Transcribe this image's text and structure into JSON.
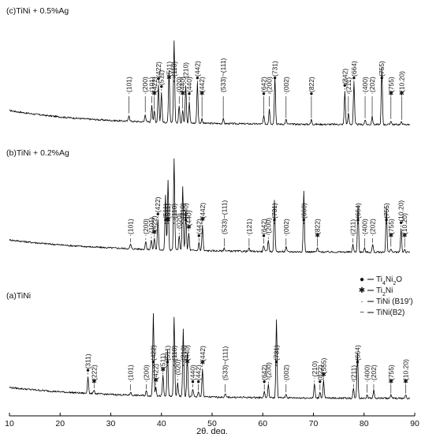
{
  "chart_data": {
    "type": "line",
    "xlabel": "2θ, deg.",
    "ylabel": "",
    "xlim": [
      10,
      90
    ],
    "xticks": [
      10,
      20,
      30,
      40,
      50,
      60,
      70,
      80,
      90
    ],
    "grid": false,
    "legend": {
      "placement": "right-middle",
      "entries": [
        {
          "symbol": "●",
          "label": "Ti4Ni2O",
          "label_base": "Ti",
          "sub1": "4",
          "mid": "Ni",
          "sub2": "2",
          "tail": "O"
        },
        {
          "symbol": "✱",
          "label": "Ti2Ni",
          "label_base": "Ti",
          "sub1": "2",
          "mid": "Ni",
          "sub2": "",
          "tail": ""
        },
        {
          "symbol": "·",
          "label": "TiNi (B19')",
          "label_base": "TiNi (B19')",
          "sub1": "",
          "mid": "",
          "sub2": "",
          "tail": ""
        },
        {
          "symbol": "~",
          "label": "TiNi(B2)",
          "label_base": "TiNi(B2)",
          "sub1": "",
          "mid": "",
          "sub2": "",
          "tail": ""
        }
      ]
    },
    "series": [
      {
        "name": "(c)TiNi + 0.5%Ag",
        "peaks": [
          {
            "x": 33.6,
            "i": 8,
            "label": "(101)",
            "mark": "·"
          },
          {
            "x": 36.8,
            "i": 10,
            "label": "(200)",
            "mark": "·"
          },
          {
            "x": 38.1,
            "i": 22,
            "label": "(101)",
            "mark": "·"
          },
          {
            "x": 38.6,
            "i": 14,
            "label": "(422)",
            "mark": "✱"
          },
          {
            "x": 39.4,
            "i": 48,
            "label": "(422)",
            "mark": "●"
          },
          {
            "x": 40.0,
            "i": 38,
            "label": "(511)",
            "mark": "●"
          },
          {
            "x": 41.5,
            "i": 65,
            "label": "(511)",
            "mark": "✱"
          },
          {
            "x": 42.5,
            "i": 105,
            "label": "(110)",
            "mark": "~"
          },
          {
            "x": 43.5,
            "i": 22,
            "label": "(020)",
            "mark": "·"
          },
          {
            "x": 44.2,
            "i": 16,
            "label": "(440)",
            "mark": "✱"
          },
          {
            "x": 44.8,
            "i": 48,
            "label": "(210)",
            "mark": "·"
          },
          {
            "x": 45.5,
            "i": 26,
            "label": "(440)",
            "mark": "●"
          },
          {
            "x": 47.1,
            "i": 52,
            "label": "(442)",
            "mark": "●"
          },
          {
            "x": 48.0,
            "i": 6,
            "label": "(442)",
            "mark": "✱"
          },
          {
            "x": 52.2,
            "i": 6,
            "label": "(533)~(111)",
            "mark": ""
          },
          {
            "x": 60.2,
            "i": 10,
            "label": "(642)",
            "mark": "●"
          },
          {
            "x": 61.3,
            "i": 20,
            "label": "(200)",
            "mark": "~"
          },
          {
            "x": 62.4,
            "i": 60,
            "label": "(731)",
            "mark": "●"
          },
          {
            "x": 64.6,
            "i": 6,
            "label": "(002)",
            "mark": "·"
          },
          {
            "x": 69.6,
            "i": 6,
            "label": "(822)",
            "mark": "●"
          },
          {
            "x": 76.2,
            "i": 42,
            "label": "(842)",
            "mark": "●"
          },
          {
            "x": 76.9,
            "i": 14,
            "label": "(211)",
            "mark": "~"
          },
          {
            "x": 78.0,
            "i": 54,
            "label": "(664)",
            "mark": "●"
          },
          {
            "x": 80.2,
            "i": 6,
            "label": "(400)",
            "mark": "·"
          },
          {
            "x": 81.6,
            "i": 10,
            "label": "(202)",
            "mark": "·"
          },
          {
            "x": 83.5,
            "i": 72,
            "label": "(755)",
            "mark": "●"
          },
          {
            "x": 85.3,
            "i": 5,
            "label": "(755)",
            "mark": "✱"
          },
          {
            "x": 87.4,
            "i": 4,
            "label": "(10.20)",
            "mark": "✱"
          }
        ]
      },
      {
        "name": "(b)TiNi + 0.2%Ag",
        "peaks": [
          {
            "x": 33.9,
            "i": 6,
            "label": "(101)",
            "mark": "·"
          },
          {
            "x": 36.9,
            "i": 10,
            "label": "(200)",
            "mark": "·"
          },
          {
            "x": 38.0,
            "i": 12,
            "label": "(101)",
            "mark": "·"
          },
          {
            "x": 38.6,
            "i": 14,
            "label": "(422)",
            "mark": "✱"
          },
          {
            "x": 39.3,
            "i": 38,
            "label": "(422)",
            "mark": "●"
          },
          {
            "x": 40.8,
            "i": 70,
            "label": "(511)",
            "mark": "●"
          },
          {
            "x": 41.3,
            "i": 88,
            "label": "(511)",
            "mark": "✱"
          },
          {
            "x": 42.5,
            "i": 115,
            "label": "(110)",
            "mark": "~"
          },
          {
            "x": 43.5,
            "i": 18,
            "label": "(020)",
            "mark": "·"
          },
          {
            "x": 44.2,
            "i": 80,
            "label": "(210)",
            "mark": "·"
          },
          {
            "x": 44.8,
            "i": 50,
            "label": "(440)",
            "mark": "●"
          },
          {
            "x": 45.4,
            "i": 22,
            "label": "(440)",
            "mark": "✱"
          },
          {
            "x": 47.4,
            "i": 10,
            "label": "(442)",
            "mark": "●"
          },
          {
            "x": 48.1,
            "i": 32,
            "label": "(442)",
            "mark": "✱"
          },
          {
            "x": 52.4,
            "i": 4,
            "label": "(533)~(111)",
            "mark": ""
          },
          {
            "x": 57.3,
            "i": 4,
            "label": "(121)",
            "mark": "·"
          },
          {
            "x": 60.2,
            "i": 8,
            "label": "(642)",
            "mark": "●"
          },
          {
            "x": 61.1,
            "i": 14,
            "label": "(200)",
            "mark": "~"
          },
          {
            "x": 62.3,
            "i": 66,
            "label": "(731)",
            "mark": "●"
          },
          {
            "x": 64.6,
            "i": 6,
            "label": "(002)",
            "mark": "·"
          },
          {
            "x": 68.1,
            "i": 76,
            "label": "(660)",
            "mark": "●"
          },
          {
            "x": 70.8,
            "i": 5,
            "label": "(822)",
            "mark": "✱"
          },
          {
            "x": 77.8,
            "i": 10,
            "label": "(211)",
            "mark": "~"
          },
          {
            "x": 78.8,
            "i": 60,
            "label": "(664)",
            "mark": "●"
          },
          {
            "x": 80.1,
            "i": 5,
            "label": "(400)",
            "mark": "·"
          },
          {
            "x": 81.7,
            "i": 10,
            "label": "(202)",
            "mark": "·"
          },
          {
            "x": 84.4,
            "i": 58,
            "label": "(755)",
            "mark": "●"
          },
          {
            "x": 85.3,
            "i": 5,
            "label": "(755)",
            "mark": "✱"
          },
          {
            "x": 87.3,
            "i": 30,
            "label": "(10.20)",
            "mark": "●"
          },
          {
            "x": 88.0,
            "i": 4,
            "label": "(10.20)",
            "mark": "✱"
          }
        ]
      },
      {
        "name": "(a)TiNi",
        "peaks": [
          {
            "x": 25.5,
            "i": 22,
            "label": "(311)",
            "mark": "●"
          },
          {
            "x": 26.7,
            "i": 5,
            "label": "(222)",
            "mark": "✱"
          },
          {
            "x": 33.9,
            "i": 4,
            "label": "(101)",
            "mark": "·"
          },
          {
            "x": 37.0,
            "i": 6,
            "label": "(200)",
            "mark": "·"
          },
          {
            "x": 38.4,
            "i": 105,
            "label": "(422)",
            "mark": "●"
          },
          {
            "x": 38.9,
            "i": 12,
            "label": "(422)",
            "mark": "✱"
          },
          {
            "x": 40.3,
            "i": 26,
            "label": "(511)",
            "mark": "✱"
          },
          {
            "x": 41.2,
            "i": 58,
            "label": "(511)",
            "mark": "●"
          },
          {
            "x": 42.5,
            "i": 100,
            "label": "(110)",
            "mark": "~"
          },
          {
            "x": 43.2,
            "i": 18,
            "label": "(020)",
            "mark": "·"
          },
          {
            "x": 44.3,
            "i": 85,
            "label": "(210)",
            "mark": "·"
          },
          {
            "x": 45.1,
            "i": 55,
            "label": "(440)",
            "mark": "✱"
          },
          {
            "x": 46.2,
            "i": 10,
            "label": "(440)",
            "mark": "●"
          },
          {
            "x": 47.3,
            "i": 6,
            "label": "(442)",
            "mark": "●"
          },
          {
            "x": 48.1,
            "i": 36,
            "label": "(442)",
            "mark": "✱"
          },
          {
            "x": 52.6,
            "i": 4,
            "label": "(533)~(111)",
            "mark": ""
          },
          {
            "x": 60.3,
            "i": 8,
            "label": "(642)",
            "mark": "●"
          },
          {
            "x": 61.1,
            "i": 16,
            "label": "(200)",
            "mark": "~"
          },
          {
            "x": 62.7,
            "i": 100,
            "label": "(731)",
            "mark": "●"
          },
          {
            "x": 64.6,
            "i": 5,
            "label": "(002)",
            "mark": "·"
          },
          {
            "x": 70.2,
            "i": 18,
            "label": "(210)",
            "mark": "·"
          },
          {
            "x": 71.3,
            "i": 8,
            "label": "(822)",
            "mark": "●"
          },
          {
            "x": 72.0,
            "i": 22,
            "label": "(555)",
            "mark": "✱"
          },
          {
            "x": 77.9,
            "i": 12,
            "label": "(211)",
            "mark": "~"
          },
          {
            "x": 78.7,
            "i": 58,
            "label": "(664)",
            "mark": "●"
          },
          {
            "x": 80.6,
            "i": 5,
            "label": "(400)",
            "mark": "·"
          },
          {
            "x": 81.9,
            "i": 10,
            "label": "(202)",
            "mark": "·"
          },
          {
            "x": 85.3,
            "i": 4,
            "label": "(755)",
            "mark": "✱"
          },
          {
            "x": 88.2,
            "i": 4,
            "label": "(10.20)",
            "mark": "✱"
          }
        ]
      }
    ]
  }
}
